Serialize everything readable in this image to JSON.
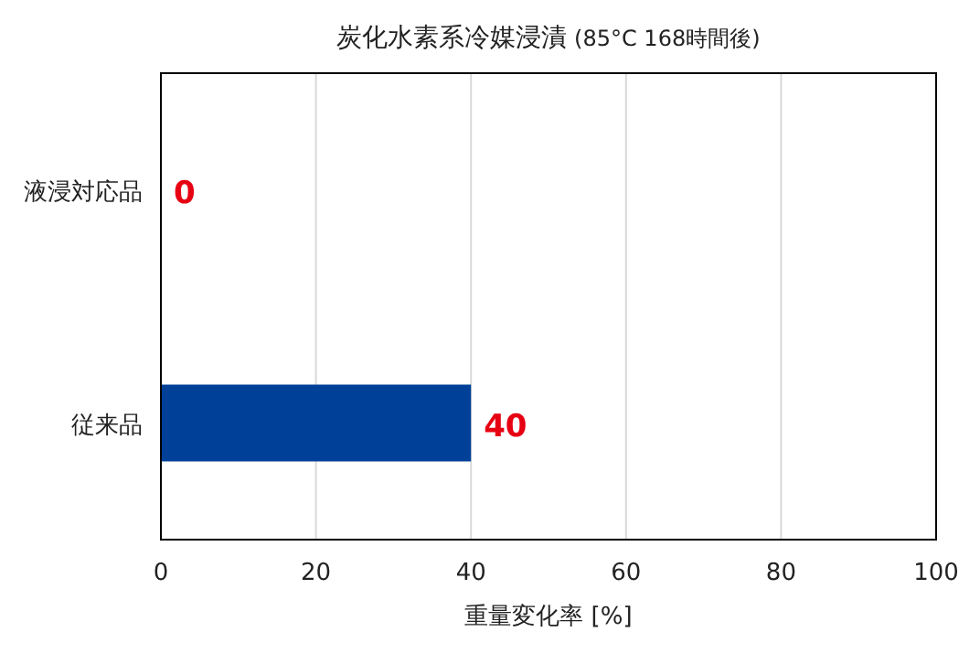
{
  "chart_data": {
    "type": "bar",
    "orientation": "horizontal",
    "title": "炭化水素系冷媒浸漬",
    "subtitle": "(85°C 168時間後)",
    "xlabel": "重量変化率 [%]",
    "categories": [
      "液浸対応品",
      "従来品"
    ],
    "values": [
      0,
      40
    ],
    "colors": [
      "#004098",
      "#004098"
    ],
    "xlim": [
      0,
      100
    ],
    "xticks": [
      0,
      20,
      40,
      60,
      80,
      100
    ],
    "grid": "x",
    "data_labels": true
  }
}
